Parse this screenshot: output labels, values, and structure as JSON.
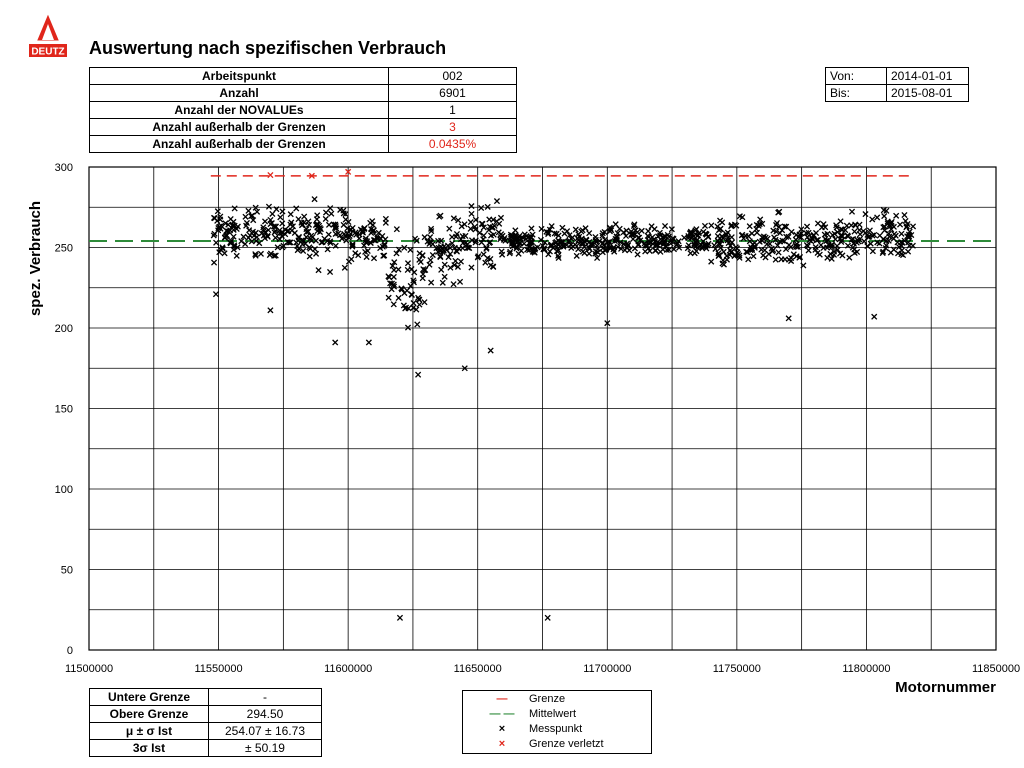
{
  "header": {
    "title": "Auswertung nach spezifischen Verbrauch",
    "logo_text": "DEUTZ"
  },
  "summary_table": [
    {
      "label": "Arbeitspunkt",
      "value": "002"
    },
    {
      "label": "Anzahl",
      "value": "6901"
    },
    {
      "label": "Anzahl der NOVALUEs",
      "value": "1"
    },
    {
      "label": "Anzahl außerhalb der Grenzen",
      "value": "3"
    },
    {
      "label": "Anzahl außerhalb der Grenzen",
      "value": "0.0435%"
    }
  ],
  "date_range": {
    "von_label": "Von:",
    "von": "2014-01-01",
    "bis_label": "Bis:",
    "bis": "2015-08-01"
  },
  "stats_table": [
    {
      "label": "Untere Grenze",
      "value": "-"
    },
    {
      "label": "Obere Grenze",
      "value": "294.50"
    },
    {
      "label": "μ ± σ  Ist",
      "value": "254.07 ± 16.73"
    },
    {
      "label": "3σ Ist",
      "value": "± 50.19"
    }
  ],
  "legend": [
    {
      "symbol": "—",
      "color": "#e0261b",
      "label": "Grenze"
    },
    {
      "symbol": "— —",
      "color": "#2e8b3a",
      "label": "Mittelwert"
    },
    {
      "symbol": "×",
      "color": "#000000",
      "label": "Messpunkt"
    },
    {
      "symbol": "×",
      "color": "#e0261b",
      "label": "Grenze verletzt"
    }
  ],
  "chart_data": {
    "type": "scatter",
    "title": "Auswertung nach spezifischen Verbrauch",
    "xlabel": "Motornummer",
    "ylabel": "spez. Verbrauch",
    "xlim": [
      11500000,
      11850000
    ],
    "ylim": [
      0,
      300
    ],
    "xticks": [
      11500000,
      11550000,
      11600000,
      11650000,
      11700000,
      11750000,
      11800000,
      11850000
    ],
    "yticks": [
      0,
      50,
      100,
      150,
      200,
      250,
      300
    ],
    "grid": true,
    "upper_limit": 294.5,
    "mean": 254.07,
    "mean_line_color": "#2e8b3a",
    "limit_line_color": "#e0261b",
    "x_range_data": [
      11547000,
      11818000
    ],
    "series": [
      {
        "name": "Messpunkt",
        "color": "#000000",
        "clusters": [
          {
            "x": [
              11547000,
              11560000
            ],
            "y": [
              235,
              280
            ]
          },
          {
            "x": [
              11560000,
              11575000
            ],
            "y": [
              238,
              282
            ]
          },
          {
            "x": [
              11575000,
              11585000
            ],
            "y": [
              240,
              278
            ]
          },
          {
            "x": [
              11585000,
              11600000
            ],
            "y": [
              230,
              290
            ]
          },
          {
            "x": [
              11600000,
              11615000
            ],
            "y": [
              235,
              275
            ]
          },
          {
            "x": [
              11615000,
              11630000
            ],
            "y": [
              195,
              270
            ]
          },
          {
            "x": [
              11630000,
              11645000
            ],
            "y": [
              220,
              280
            ]
          },
          {
            "x": [
              11645000,
              11660000
            ],
            "y": [
              230,
              285
            ]
          },
          {
            "x": [
              11660000,
              11700000
            ],
            "y": [
              240,
              265
            ]
          },
          {
            "x": [
              11700000,
              11740000
            ],
            "y": [
              240,
              268
            ]
          },
          {
            "x": [
              11740000,
              11790000
            ],
            "y": [
              232,
              275
            ]
          },
          {
            "x": [
              11790000,
              11818000
            ],
            "y": [
              238,
              278
            ]
          }
        ],
        "outliers": [
          {
            "x": 11570000,
            "y": 211
          },
          {
            "x": 11620000,
            "y": 20
          },
          {
            "x": 11677000,
            "y": 20
          },
          {
            "x": 11627000,
            "y": 171
          },
          {
            "x": 11645000,
            "y": 175
          },
          {
            "x": 11655000,
            "y": 186
          },
          {
            "x": 11608000,
            "y": 191
          },
          {
            "x": 11595000,
            "y": 191
          },
          {
            "x": 11700000,
            "y": 203
          },
          {
            "x": 11770000,
            "y": 206
          },
          {
            "x": 11803000,
            "y": 207
          },
          {
            "x": 11549000,
            "y": 221
          }
        ]
      },
      {
        "name": "Grenze verletzt",
        "color": "#e0261b",
        "points": [
          {
            "x": 11570000,
            "y": 295
          },
          {
            "x": 11586000,
            "y": 294.5
          },
          {
            "x": 11600000,
            "y": 297
          }
        ]
      }
    ]
  }
}
